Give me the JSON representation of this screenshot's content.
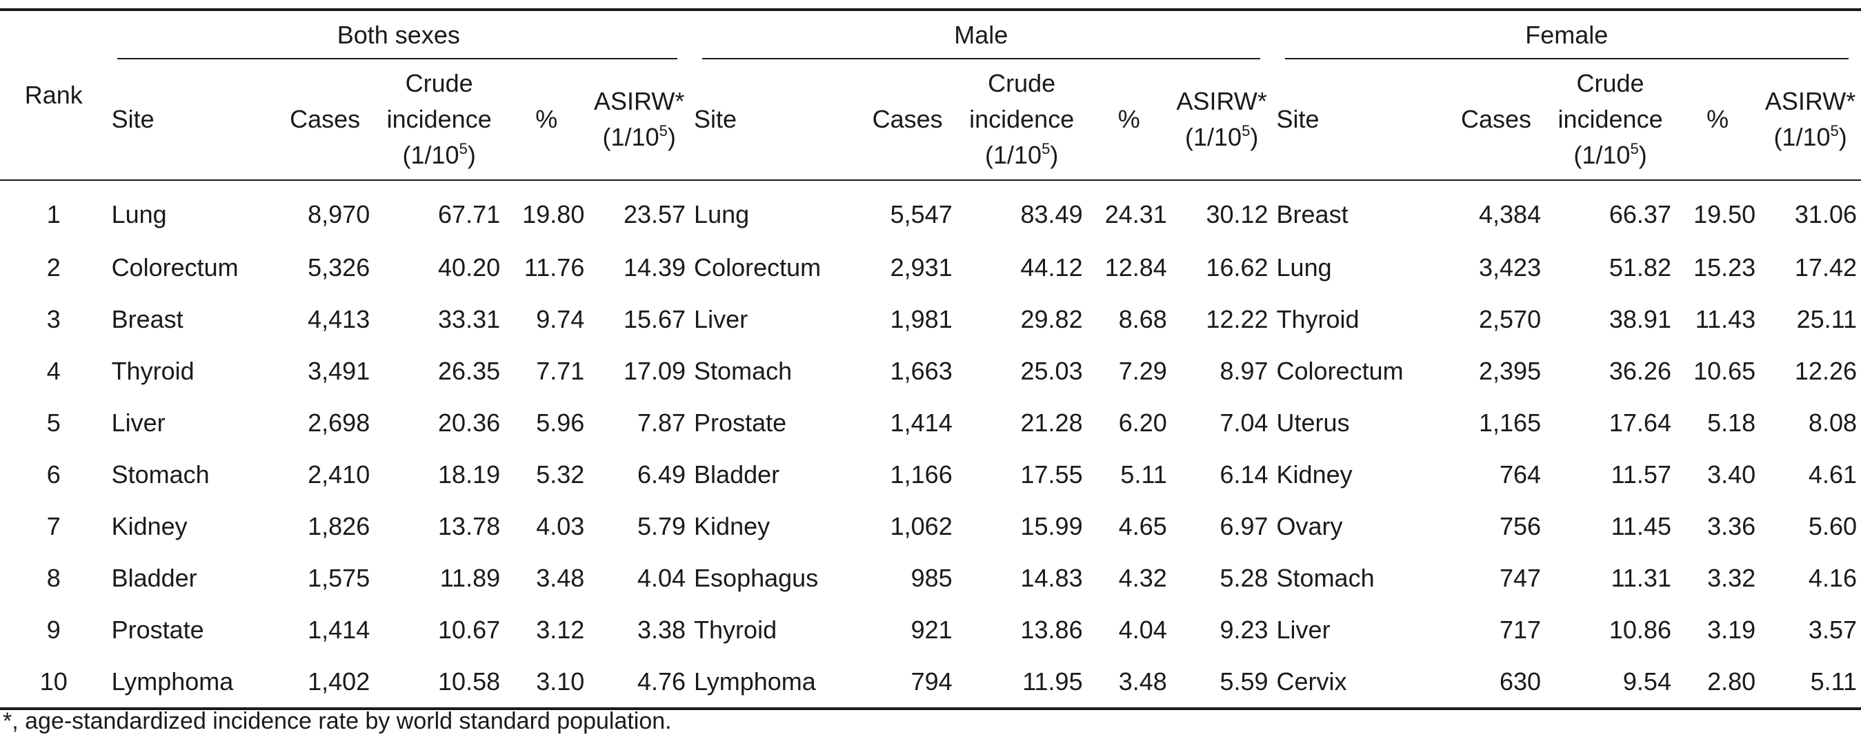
{
  "groups": {
    "both": "Both sexes",
    "male": "Male",
    "female": "Female"
  },
  "headers": {
    "rank": "Rank",
    "site": "Site",
    "cases": "Cases",
    "crude_line1": "Crude",
    "crude_line2": "incidence",
    "crude_unit_pre": "(1/10",
    "crude_unit_exp": "5",
    "crude_unit_post": ")",
    "pct": "%",
    "asirw": "ASIRW*",
    "asirw_unit_pre": "(1/10",
    "asirw_unit_exp": "5",
    "asirw_unit_post": ")"
  },
  "rows": [
    {
      "rank": "1",
      "both": [
        "Lung",
        "8,970",
        "67.71",
        "19.80",
        "23.57"
      ],
      "male": [
        "Lung",
        "5,547",
        "83.49",
        "24.31",
        "30.12"
      ],
      "female": [
        "Breast",
        "4,384",
        "66.37",
        "19.50",
        "31.06"
      ]
    },
    {
      "rank": "2",
      "both": [
        "Colorectum",
        "5,326",
        "40.20",
        "11.76",
        "14.39"
      ],
      "male": [
        "Colorectum",
        "2,931",
        "44.12",
        "12.84",
        "16.62"
      ],
      "female": [
        "Lung",
        "3,423",
        "51.82",
        "15.23",
        "17.42"
      ]
    },
    {
      "rank": "3",
      "both": [
        "Breast",
        "4,413",
        "33.31",
        "9.74",
        "15.67"
      ],
      "male": [
        "Liver",
        "1,981",
        "29.82",
        "8.68",
        "12.22"
      ],
      "female": [
        "Thyroid",
        "2,570",
        "38.91",
        "11.43",
        "25.11"
      ]
    },
    {
      "rank": "4",
      "both": [
        "Thyroid",
        "3,491",
        "26.35",
        "7.71",
        "17.09"
      ],
      "male": [
        "Stomach",
        "1,663",
        "25.03",
        "7.29",
        "8.97"
      ],
      "female": [
        "Colorectum",
        "2,395",
        "36.26",
        "10.65",
        "12.26"
      ]
    },
    {
      "rank": "5",
      "both": [
        "Liver",
        "2,698",
        "20.36",
        "5.96",
        "7.87"
      ],
      "male": [
        "Prostate",
        "1,414",
        "21.28",
        "6.20",
        "7.04"
      ],
      "female": [
        "Uterus",
        "1,165",
        "17.64",
        "5.18",
        "8.08"
      ]
    },
    {
      "rank": "6",
      "both": [
        "Stomach",
        "2,410",
        "18.19",
        "5.32",
        "6.49"
      ],
      "male": [
        "Bladder",
        "1,166",
        "17.55",
        "5.11",
        "6.14"
      ],
      "female": [
        "Kidney",
        "764",
        "11.57",
        "3.40",
        "4.61"
      ]
    },
    {
      "rank": "7",
      "both": [
        "Kidney",
        "1,826",
        "13.78",
        "4.03",
        "5.79"
      ],
      "male": [
        "Kidney",
        "1,062",
        "15.99",
        "4.65",
        "6.97"
      ],
      "female": [
        "Ovary",
        "756",
        "11.45",
        "3.36",
        "5.60"
      ]
    },
    {
      "rank": "8",
      "both": [
        "Bladder",
        "1,575",
        "11.89",
        "3.48",
        "4.04"
      ],
      "male": [
        "Esophagus",
        "985",
        "14.83",
        "4.32",
        "5.28"
      ],
      "female": [
        "Stomach",
        "747",
        "11.31",
        "3.32",
        "4.16"
      ]
    },
    {
      "rank": "9",
      "both": [
        "Prostate",
        "1,414",
        "10.67",
        "3.12",
        "3.38"
      ],
      "male": [
        "Thyroid",
        "921",
        "13.86",
        "4.04",
        "9.23"
      ],
      "female": [
        "Liver",
        "717",
        "10.86",
        "3.19",
        "3.57"
      ]
    },
    {
      "rank": "10",
      "both": [
        "Lymphoma",
        "1,402",
        "10.58",
        "3.10",
        "4.76"
      ],
      "male": [
        "Lymphoma",
        "794",
        "11.95",
        "3.48",
        "5.59"
      ],
      "female": [
        "Cervix",
        "630",
        "9.54",
        "2.80",
        "5.11"
      ]
    }
  ],
  "footnote": "*, age-standardized incidence rate by world standard population."
}
